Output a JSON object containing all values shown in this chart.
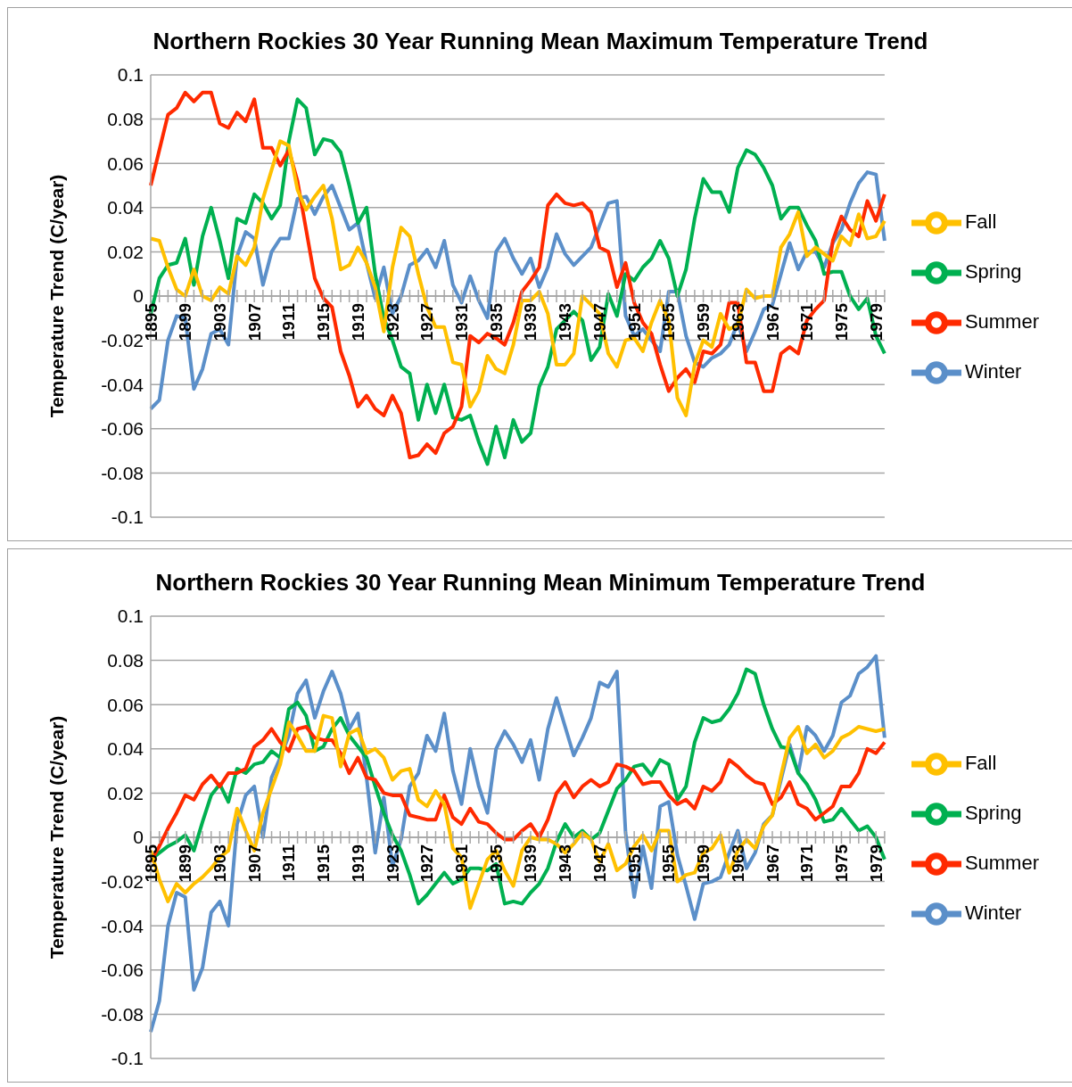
{
  "chart_data": [
    {
      "type": "line",
      "title": "Northern Rockies 30 Year Running Mean Maximum Temperature Trend",
      "ylabel": "Temperature Trend (C/year)",
      "categories": [
        "1895",
        null,
        null,
        null,
        "1899",
        null,
        null,
        null,
        "1903",
        null,
        null,
        null,
        "1907",
        null,
        null,
        null,
        "1911",
        null,
        null,
        null,
        "1915",
        null,
        null,
        null,
        "1919",
        null,
        null,
        null,
        "1923",
        null,
        null,
        null,
        "1927",
        null,
        null,
        null,
        "1931",
        null,
        null,
        null,
        "1935",
        null,
        null,
        null,
        "1939",
        null,
        null,
        null,
        "1943",
        null,
        null,
        null,
        "1947",
        null,
        null,
        null,
        "1951",
        null,
        null,
        null,
        "1955",
        null,
        null,
        null,
        "1959",
        null,
        null,
        null,
        "1963",
        null,
        null,
        null,
        "1967",
        null,
        null,
        null,
        "1971",
        null,
        null,
        null,
        "1975",
        null,
        null,
        null,
        "1979",
        null
      ],
      "series": [
        {
          "name": "Winter",
          "color": "#5b8fc9",
          "values": [
            -0.051,
            -0.047,
            -0.02,
            -0.009,
            -0.01,
            -0.042,
            -0.033,
            -0.017,
            -0.015,
            -0.022,
            0.018,
            0.029,
            0.026,
            0.005,
            0.02,
            0.026,
            0.026,
            0.044,
            0.045,
            0.037,
            0.045,
            0.05,
            0.04,
            0.03,
            0.033,
            0.015,
            -0.001,
            0.013,
            -0.008,
            0.0,
            0.014,
            0.016,
            0.021,
            0.013,
            0.025,
            0.005,
            -0.003,
            0.009,
            -0.002,
            -0.01,
            0.02,
            0.026,
            0.017,
            0.01,
            0.017,
            0.004,
            0.013,
            0.028,
            0.019,
            0.014,
            0.018,
            0.022,
            0.032,
            0.042,
            0.043,
            -0.009,
            -0.018,
            -0.015,
            -0.02,
            -0.025,
            0.002,
            0.002,
            -0.018,
            -0.03,
            -0.032,
            -0.028,
            -0.026,
            -0.022,
            -0.012,
            -0.025,
            -0.016,
            -0.006,
            -0.004,
            0.01,
            0.024,
            0.012,
            0.02,
            0.02,
            0.013,
            0.024,
            0.03,
            0.042,
            0.051,
            0.056,
            0.055,
            0.025
          ]
        },
        {
          "name": "Spring",
          "color": "#00b050",
          "values": [
            -0.008,
            0.008,
            0.014,
            0.015,
            0.026,
            0.005,
            0.027,
            0.04,
            0.025,
            0.008,
            0.035,
            0.033,
            0.046,
            0.042,
            0.035,
            0.041,
            0.07,
            0.089,
            0.085,
            0.064,
            0.071,
            0.07,
            0.065,
            0.05,
            0.033,
            0.04,
            0.01,
            -0.01,
            -0.02,
            -0.032,
            -0.035,
            -0.056,
            -0.04,
            -0.053,
            -0.04,
            -0.055,
            -0.056,
            -0.054,
            -0.066,
            -0.076,
            -0.059,
            -0.073,
            -0.056,
            -0.066,
            -0.062,
            -0.041,
            -0.032,
            -0.015,
            -0.011,
            -0.007,
            -0.011,
            -0.029,
            -0.023,
            0.001,
            -0.009,
            0.01,
            0.007,
            0.013,
            0.017,
            0.025,
            0.017,
            0.0,
            0.012,
            0.035,
            0.053,
            0.047,
            0.047,
            0.038,
            0.058,
            0.066,
            0.064,
            0.058,
            0.05,
            0.035,
            0.04,
            0.04,
            0.032,
            0.025,
            0.01,
            0.011,
            0.011,
            0.0,
            -0.006,
            -0.001,
            -0.018,
            -0.026
          ]
        },
        {
          "name": "Summer",
          "color": "#ff2a00",
          "values": [
            0.05,
            0.066,
            0.082,
            0.085,
            0.092,
            0.088,
            0.092,
            0.092,
            0.078,
            0.076,
            0.083,
            0.079,
            0.089,
            0.067,
            0.067,
            0.059,
            0.066,
            0.052,
            0.03,
            0.008,
            -0.001,
            -0.005,
            -0.025,
            -0.036,
            -0.05,
            -0.045,
            -0.051,
            -0.054,
            -0.045,
            -0.053,
            -0.073,
            -0.072,
            -0.067,
            -0.071,
            -0.062,
            -0.059,
            -0.05,
            -0.018,
            -0.021,
            -0.017,
            -0.019,
            -0.022,
            -0.012,
            0.002,
            0.007,
            0.013,
            0.041,
            0.046,
            0.042,
            0.041,
            0.042,
            0.038,
            0.022,
            0.02,
            0.004,
            0.015,
            -0.003,
            -0.012,
            -0.017,
            -0.031,
            -0.043,
            -0.037,
            -0.033,
            -0.039,
            -0.025,
            -0.026,
            -0.022,
            -0.003,
            -0.003,
            -0.03,
            -0.03,
            -0.043,
            -0.043,
            -0.026,
            -0.023,
            -0.026,
            -0.011,
            -0.006,
            -0.002,
            0.025,
            0.036,
            0.03,
            0.027,
            0.043,
            0.034,
            0.046
          ]
        },
        {
          "name": "Fall",
          "color": "#ffc000",
          "values": [
            0.026,
            0.025,
            0.013,
            0.003,
            0.0,
            0.012,
            0.0,
            -0.002,
            0.004,
            0.001,
            0.018,
            0.014,
            0.022,
            0.044,
            0.057,
            0.07,
            0.068,
            0.048,
            0.039,
            0.045,
            0.05,
            0.035,
            0.012,
            0.014,
            0.022,
            0.015,
            0.004,
            -0.016,
            0.013,
            0.031,
            0.027,
            0.01,
            -0.005,
            -0.014,
            -0.014,
            -0.03,
            -0.031,
            -0.05,
            -0.043,
            -0.027,
            -0.033,
            -0.035,
            -0.022,
            -0.002,
            -0.002,
            0.002,
            -0.008,
            -0.031,
            -0.031,
            -0.026,
            0.0,
            -0.004,
            -0.008,
            -0.026,
            -0.032,
            -0.02,
            -0.019,
            -0.025,
            -0.012,
            -0.002,
            -0.011,
            -0.046,
            -0.054,
            -0.031,
            -0.02,
            -0.023,
            -0.008,
            -0.015,
            -0.013,
            0.003,
            -0.001,
            0.0,
            0.0,
            0.022,
            0.028,
            0.038,
            0.018,
            0.022,
            0.019,
            0.016,
            0.027,
            0.023,
            0.037,
            0.026,
            0.027,
            0.034
          ]
        }
      ],
      "ylim": [
        -0.1,
        0.1
      ],
      "yticks": [
        -0.1,
        -0.08,
        -0.06,
        -0.04,
        -0.02,
        0,
        0.02,
        0.04,
        0.06,
        0.08,
        0.1
      ],
      "grid": "y",
      "legend": "right"
    },
    {
      "type": "line",
      "title": "Northern Rockies 30 Year Running Mean Minimum Temperature Trend",
      "ylabel": "Temperature Trend (C/year)",
      "categories": [
        "1895",
        null,
        null,
        null,
        "1899",
        null,
        null,
        null,
        "1903",
        null,
        null,
        null,
        "1907",
        null,
        null,
        null,
        "1911",
        null,
        null,
        null,
        "1915",
        null,
        null,
        null,
        "1919",
        null,
        null,
        null,
        "1923",
        null,
        null,
        null,
        "1927",
        null,
        null,
        null,
        "1931",
        null,
        null,
        null,
        "1935",
        null,
        null,
        null,
        "1939",
        null,
        null,
        null,
        "1943",
        null,
        null,
        null,
        "1947",
        null,
        null,
        null,
        "1951",
        null,
        null,
        null,
        "1955",
        null,
        null,
        null,
        "1959",
        null,
        null,
        null,
        "1963",
        null,
        null,
        null,
        "1967",
        null,
        null,
        null,
        "1971",
        null,
        null,
        null,
        "1975",
        null,
        null,
        null,
        "1979",
        null
      ],
      "series": [
        {
          "name": "Winter",
          "color": "#5b8fc9",
          "values": [
            -0.088,
            -0.074,
            -0.04,
            -0.025,
            -0.027,
            -0.069,
            -0.059,
            -0.034,
            -0.029,
            -0.04,
            0.006,
            0.019,
            0.023,
            0.0,
            0.027,
            0.036,
            0.046,
            0.065,
            0.071,
            0.054,
            0.066,
            0.075,
            0.065,
            0.049,
            0.056,
            0.027,
            -0.007,
            0.018,
            -0.013,
            -0.001,
            0.023,
            0.029,
            0.046,
            0.039,
            0.056,
            0.03,
            0.015,
            0.04,
            0.023,
            0.011,
            0.04,
            0.048,
            0.042,
            0.034,
            0.044,
            0.026,
            0.049,
            0.063,
            0.05,
            0.037,
            0.045,
            0.054,
            0.07,
            0.068,
            0.075,
            0.002,
            -0.027,
            -0.004,
            -0.023,
            0.014,
            0.016,
            -0.008,
            -0.022,
            -0.037,
            -0.021,
            -0.02,
            -0.018,
            -0.007,
            0.003,
            -0.014,
            -0.007,
            0.006,
            0.01,
            0.026,
            0.042,
            0.029,
            0.05,
            0.046,
            0.039,
            0.046,
            0.061,
            0.064,
            0.074,
            0.077,
            0.082,
            0.045
          ]
        },
        {
          "name": "Spring",
          "color": "#00b050",
          "values": [
            -0.01,
            -0.007,
            -0.004,
            -0.002,
            0.001,
            -0.006,
            0.007,
            0.019,
            0.024,
            0.016,
            0.031,
            0.029,
            0.033,
            0.034,
            0.039,
            0.036,
            0.058,
            0.061,
            0.055,
            0.039,
            0.041,
            0.049,
            0.054,
            0.046,
            0.041,
            0.036,
            0.023,
            0.011,
            0.001,
            -0.006,
            -0.017,
            -0.03,
            -0.026,
            -0.021,
            -0.016,
            -0.021,
            -0.019,
            -0.014,
            -0.014,
            -0.015,
            -0.012,
            -0.03,
            -0.029,
            -0.03,
            -0.025,
            -0.021,
            -0.014,
            -0.002,
            0.006,
            0.0,
            0.003,
            -0.001,
            0.002,
            0.012,
            0.022,
            0.026,
            0.032,
            0.033,
            0.028,
            0.035,
            0.033,
            0.017,
            0.023,
            0.043,
            0.054,
            0.052,
            0.053,
            0.058,
            0.065,
            0.076,
            0.074,
            0.06,
            0.049,
            0.041,
            0.04,
            0.029,
            0.024,
            0.017,
            0.007,
            0.008,
            0.013,
            0.008,
            0.003,
            0.005,
            0.0,
            -0.01
          ]
        },
        {
          "name": "Summer",
          "color": "#ff2a00",
          "values": [
            -0.011,
            -0.004,
            0.004,
            0.011,
            0.019,
            0.017,
            0.024,
            0.028,
            0.023,
            0.029,
            0.029,
            0.031,
            0.041,
            0.044,
            0.049,
            0.043,
            0.039,
            0.049,
            0.05,
            0.045,
            0.044,
            0.044,
            0.038,
            0.029,
            0.036,
            0.027,
            0.026,
            0.02,
            0.019,
            0.019,
            0.01,
            0.009,
            0.008,
            0.008,
            0.019,
            0.009,
            0.006,
            0.013,
            0.007,
            0.006,
            0.002,
            -0.001,
            -0.001,
            0.003,
            0.006,
            0.0,
            0.008,
            0.02,
            0.025,
            0.018,
            0.023,
            0.026,
            0.023,
            0.025,
            0.033,
            0.032,
            0.03,
            0.024,
            0.025,
            0.025,
            0.019,
            0.015,
            0.017,
            0.013,
            0.023,
            0.021,
            0.025,
            0.035,
            0.032,
            0.028,
            0.025,
            0.024,
            0.015,
            0.018,
            0.025,
            0.015,
            0.013,
            0.008,
            0.011,
            0.014,
            0.023,
            0.023,
            0.029,
            0.04,
            0.038,
            0.043
          ]
        },
        {
          "name": "Fall",
          "color": "#ffc000",
          "values": [
            -0.006,
            -0.019,
            -0.029,
            -0.021,
            -0.025,
            -0.021,
            -0.018,
            -0.014,
            -0.009,
            -0.006,
            0.013,
            0.003,
            -0.006,
            0.011,
            0.022,
            0.033,
            0.052,
            0.046,
            0.039,
            0.039,
            0.055,
            0.054,
            0.032,
            0.047,
            0.049,
            0.038,
            0.04,
            0.036,
            0.026,
            0.03,
            0.031,
            0.017,
            0.014,
            0.021,
            0.015,
            -0.005,
            -0.009,
            -0.032,
            -0.021,
            -0.01,
            -0.006,
            -0.015,
            -0.022,
            -0.006,
            0.0,
            -0.001,
            -0.001,
            -0.003,
            -0.007,
            -0.003,
            0.002,
            -0.001,
            -0.011,
            -0.003,
            -0.015,
            -0.012,
            -0.004,
            0.001,
            -0.006,
            0.003,
            0.003,
            -0.02,
            -0.017,
            -0.016,
            -0.007,
            -0.005,
            0.001,
            -0.016,
            -0.006,
            -0.001,
            -0.005,
            0.005,
            0.01,
            0.028,
            0.045,
            0.05,
            0.038,
            0.042,
            0.036,
            0.039,
            0.045,
            0.047,
            0.05,
            0.049,
            0.048,
            0.049
          ]
        }
      ],
      "ylim": [
        -0.1,
        0.1
      ],
      "yticks": [
        -0.1,
        -0.08,
        -0.06,
        -0.04,
        -0.02,
        0,
        0.02,
        0.04,
        0.06,
        0.08,
        0.1
      ],
      "grid": "y",
      "legend": "right"
    }
  ]
}
